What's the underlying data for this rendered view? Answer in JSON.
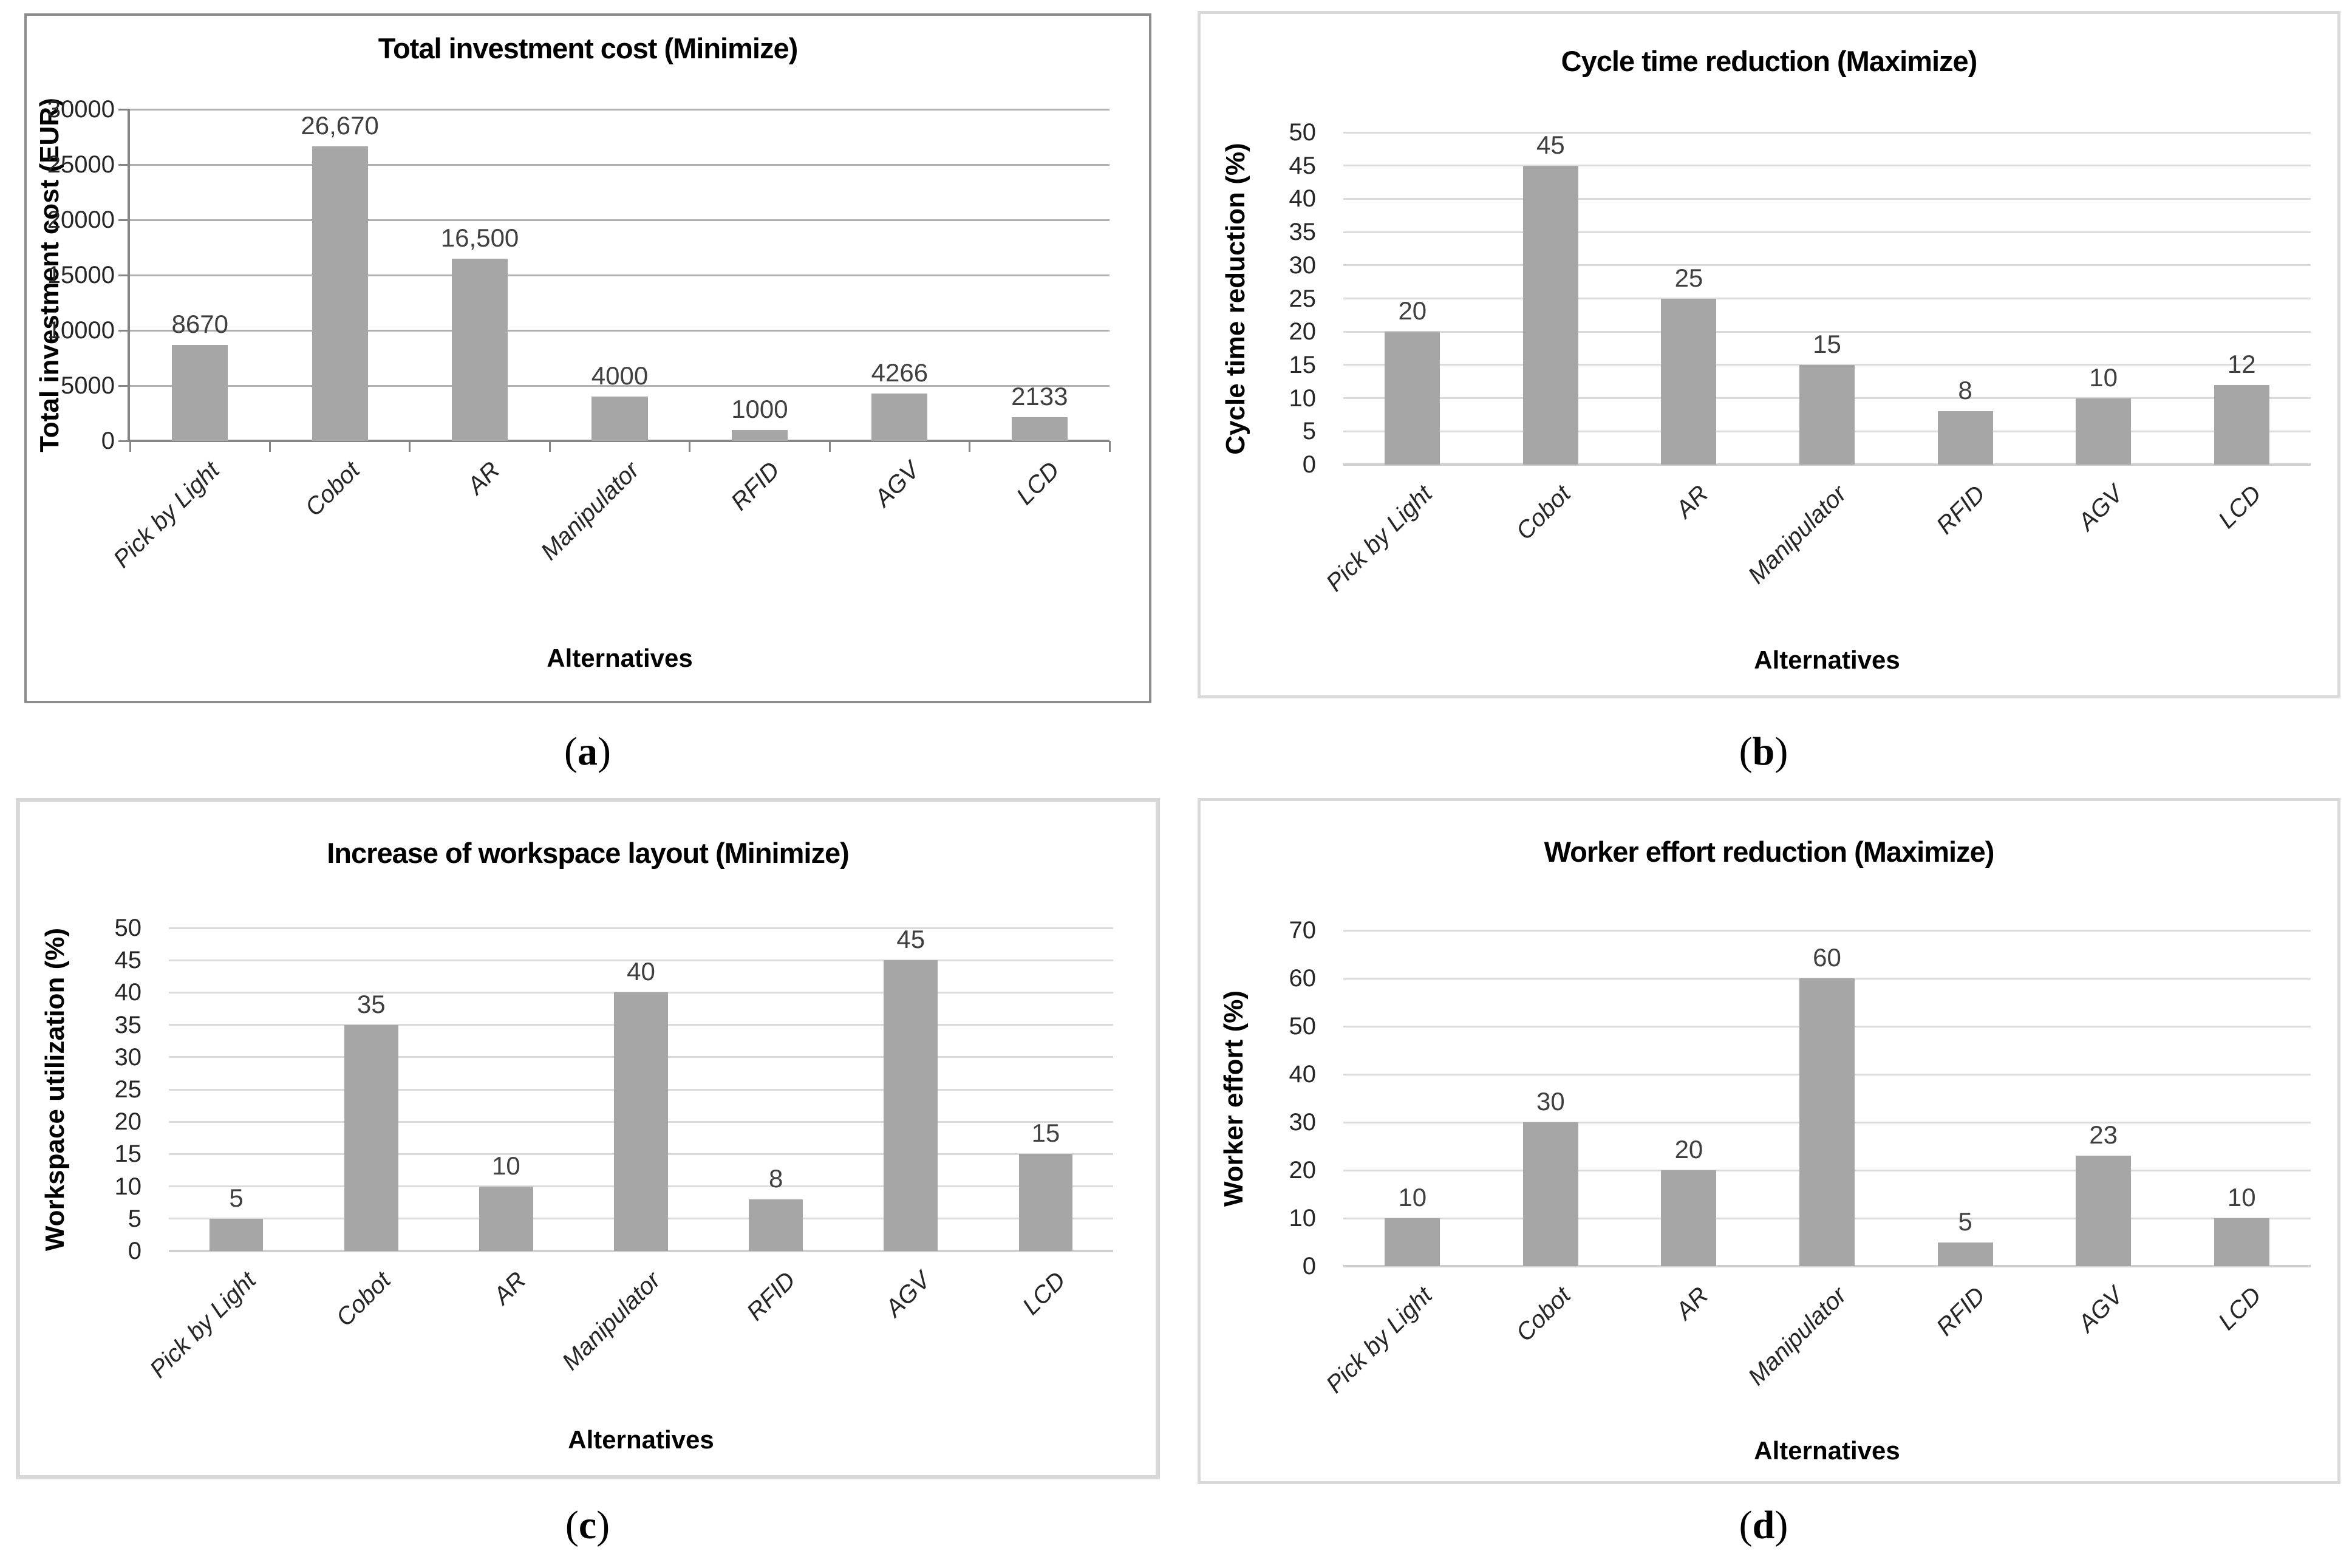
{
  "chart_data": [
    {
      "type": "bar",
      "panel": "a",
      "title": "Total investment cost (Minimize)",
      "xlabel": "Alternatives",
      "ylabel": "Total investment cost (EUR)",
      "categories": [
        "Pick by Light",
        "Cobot",
        "AR",
        "Manipulator",
        "RFID",
        "AGV",
        "LCD"
      ],
      "values": [
        8670,
        26670,
        16500,
        4000,
        1000,
        4266,
        2133
      ],
      "data_labels": [
        "8670",
        "26,670",
        "16,500",
        "4000",
        "1000",
        "4266",
        "2133"
      ],
      "ylim": [
        0,
        30000
      ],
      "ytick_step": 5000,
      "ytick_labels": [
        "0",
        "5000",
        "10000",
        "15000",
        "20000",
        "25000",
        "30000"
      ],
      "grid": true,
      "legend": false,
      "bar_color": "#a6a6a6"
    },
    {
      "type": "bar",
      "panel": "b",
      "title": "Cycle time reduction (Maximize)",
      "xlabel": "Alternatives",
      "ylabel": "Cycle time reduction (%)",
      "categories": [
        "Pick by Light",
        "Cobot",
        "AR",
        "Manipulator",
        "RFID",
        "AGV",
        "LCD"
      ],
      "values": [
        20,
        45,
        25,
        15,
        8,
        10,
        12
      ],
      "data_labels": [
        "20",
        "45",
        "25",
        "15",
        "8",
        "10",
        "12"
      ],
      "ylim": [
        0,
        50
      ],
      "ytick_step": 5,
      "ytick_labels": [
        "0",
        "5",
        "10",
        "15",
        "20",
        "25",
        "30",
        "35",
        "40",
        "45",
        "50"
      ],
      "grid": true,
      "legend": false,
      "bar_color": "#a6a6a6"
    },
    {
      "type": "bar",
      "panel": "c",
      "title": "Increase of workspace layout (Minimize)",
      "xlabel": "Alternatives",
      "ylabel": "Workspace utilization (%)",
      "categories": [
        "Pick by Light",
        "Cobot",
        "AR",
        "Manipulator",
        "RFID",
        "AGV",
        "LCD"
      ],
      "values": [
        5,
        35,
        10,
        40,
        8,
        45,
        15
      ],
      "data_labels": [
        "5",
        "35",
        "10",
        "40",
        "8",
        "45",
        "15"
      ],
      "ylim": [
        0,
        50
      ],
      "ytick_step": 5,
      "ytick_labels": [
        "0",
        "5",
        "10",
        "15",
        "20",
        "25",
        "30",
        "35",
        "40",
        "45",
        "50"
      ],
      "grid": true,
      "legend": false,
      "bar_color": "#a6a6a6"
    },
    {
      "type": "bar",
      "panel": "d",
      "title": "Worker effort reduction (Maximize)",
      "xlabel": "Alternatives",
      "ylabel": "Worker effort (%)",
      "categories": [
        "Pick by Light",
        "Cobot",
        "AR",
        "Manipulator",
        "RFID",
        "AGV",
        "LCD"
      ],
      "values": [
        10,
        30,
        20,
        60,
        5,
        23,
        10
      ],
      "data_labels": [
        "10",
        "30",
        "20",
        "60",
        "5",
        "23",
        "10"
      ],
      "ylim": [
        0,
        70
      ],
      "ytick_step": 10,
      "ytick_labels": [
        "0",
        "10",
        "20",
        "30",
        "40",
        "50",
        "60",
        "70"
      ],
      "grid": true,
      "legend": false,
      "bar_color": "#a6a6a6"
    }
  ],
  "captions": [
    {
      "open": "(",
      "letter": "a",
      "close": ")"
    },
    {
      "open": "(",
      "letter": "b",
      "close": ")"
    },
    {
      "open": "(",
      "letter": "c",
      "close": ")"
    },
    {
      "open": "(",
      "letter": "d",
      "close": ")"
    }
  ],
  "colors": {
    "bar": "#a6a6a6",
    "grid_light": "#dbdbdb",
    "axis_light": "#cfcfcf",
    "grid_dark": "#b0b0b0",
    "axis_dark": "#858585"
  }
}
